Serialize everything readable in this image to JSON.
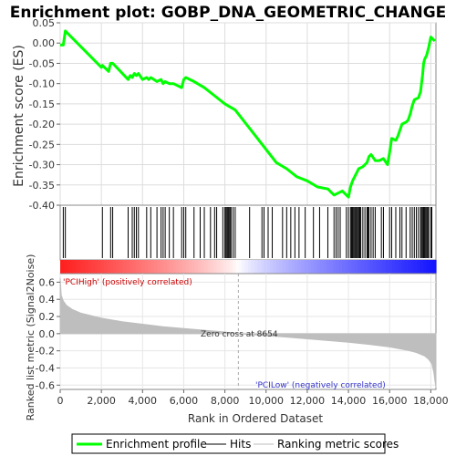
{
  "chart_data": {
    "type": "line",
    "title": "Enrichment plot: GOBP_DNA_GEOMETRIC_CHANGE",
    "enrichment_panel": {
      "ylabel": "Enrichment score (ES)",
      "ylim": [
        -0.4,
        0.05
      ],
      "yticks": [
        0.05,
        0.0,
        -0.05,
        -0.1,
        -0.15,
        -0.2,
        -0.25,
        -0.3,
        -0.35,
        -0.4
      ],
      "ytick_labels": [
        "0.05",
        "0.00",
        "-0.05",
        "-0.10",
        "-0.15",
        "-0.20",
        "-0.25",
        "-0.30",
        "-0.35",
        "-0.40"
      ],
      "grid": true,
      "series": [
        {
          "name": "Enrichment profile",
          "color": "#00ff00",
          "x": [
            0,
            150,
            250,
            2000,
            2050,
            2350,
            2450,
            2550,
            3300,
            3400,
            3500,
            3600,
            3700,
            3800,
            4000,
            4200,
            4300,
            4400,
            4700,
            4900,
            5000,
            5100,
            5300,
            5500,
            5900,
            6000,
            6100,
            6500,
            7000,
            7500,
            8000,
            8500,
            9500,
            10500,
            11000,
            11500,
            12000,
            12500,
            13000,
            13300,
            13500,
            13700,
            14000,
            14100,
            14200,
            14300,
            14400,
            14500,
            14700,
            14800,
            14900,
            15000,
            15100,
            15300,
            15500,
            15700,
            15900,
            16000,
            16100,
            16300,
            16400,
            16600,
            16800,
            16900,
            17000,
            17100,
            17200,
            17400,
            17500,
            17550,
            17600,
            17650,
            17700,
            17800,
            17900,
            18000,
            18100,
            18200
          ],
          "y": [
            -0.005,
            -0.005,
            0.03,
            -0.06,
            -0.055,
            -0.07,
            -0.05,
            -0.05,
            -0.09,
            -0.08,
            -0.085,
            -0.075,
            -0.08,
            -0.075,
            -0.09,
            -0.085,
            -0.09,
            -0.085,
            -0.095,
            -0.09,
            -0.1,
            -0.095,
            -0.1,
            -0.1,
            -0.11,
            -0.09,
            -0.085,
            -0.095,
            -0.11,
            -0.13,
            -0.15,
            -0.165,
            -0.23,
            -0.295,
            -0.31,
            -0.33,
            -0.34,
            -0.355,
            -0.36,
            -0.375,
            -0.37,
            -0.365,
            -0.38,
            -0.355,
            -0.34,
            -0.33,
            -0.32,
            -0.31,
            -0.305,
            -0.3,
            -0.295,
            -0.28,
            -0.275,
            -0.29,
            -0.29,
            -0.285,
            -0.3,
            -0.27,
            -0.235,
            -0.24,
            -0.23,
            -0.2,
            -0.195,
            -0.19,
            -0.175,
            -0.155,
            -0.14,
            -0.135,
            -0.12,
            -0.1,
            -0.08,
            -0.05,
            -0.04,
            -0.03,
            -0.01,
            0.015,
            0.01,
            0.005
          ]
        }
      ]
    },
    "hits_panel": {
      "hit_positions": [
        150,
        250,
        2050,
        2450,
        2550,
        3300,
        3500,
        3600,
        3700,
        3800,
        4200,
        4400,
        4700,
        4900,
        5000,
        5100,
        5300,
        5500,
        5900,
        6000,
        6100,
        6500,
        6800,
        7000,
        7300,
        7500,
        7600,
        7900,
        8000,
        8050,
        8100,
        8150,
        8200,
        8250,
        8300,
        8400,
        8500,
        9200,
        9800,
        9900,
        10100,
        10300,
        10800,
        11000,
        11200,
        11400,
        11600,
        11900,
        12300,
        12600,
        13000,
        13300,
        13400,
        13500,
        13600,
        13900,
        14000,
        14100,
        14150,
        14200,
        14250,
        14300,
        14350,
        14400,
        14450,
        14500,
        14550,
        14600,
        14700,
        14800,
        14900,
        14950,
        15000,
        15100,
        15200,
        15300,
        15600,
        15700,
        16000,
        16100,
        16300,
        16500,
        16600,
        16800,
        17000,
        17100,
        17200,
        17300,
        17400,
        17500,
        17550,
        17600,
        17650,
        17700,
        17750,
        17800,
        17850,
        17900,
        18000,
        18050
      ]
    },
    "ranked_metric_panel": {
      "ylabel": "Ranked list metric (Signal2Noise)",
      "ylim": [
        -0.65,
        0.7
      ],
      "yticks": [
        0.6,
        0.4,
        0.2,
        0.0,
        -0.2,
        -0.4,
        -0.6
      ],
      "ytick_labels": [
        "0.6",
        "0.4",
        "0.2",
        "0.0",
        "-0.2",
        "-0.4",
        "-0.6"
      ],
      "x": [
        0,
        50,
        150,
        300,
        600,
        1000,
        2000,
        3000,
        4000,
        5000,
        6000,
        7000,
        8000,
        8654,
        9500,
        11000,
        12000,
        13000,
        14000,
        15000,
        16000,
        16800,
        17300,
        17700,
        17900,
        18050,
        18150,
        18200,
        18250
      ],
      "values": [
        0.65,
        0.45,
        0.38,
        0.33,
        0.28,
        0.24,
        0.18,
        0.14,
        0.11,
        0.08,
        0.06,
        0.04,
        0.02,
        0.0,
        -0.015,
        -0.04,
        -0.06,
        -0.08,
        -0.1,
        -0.125,
        -0.155,
        -0.19,
        -0.22,
        -0.26,
        -0.3,
        -0.35,
        -0.45,
        -0.55,
        -0.63
      ],
      "zero_cross_rank": 8654,
      "zero_cross_label": "Zero cross at 8654",
      "positive_label": "'PCIHigh' (positively correlated)",
      "negative_label": "'PCILow' (negatively correlated)",
      "fill_color": "#bebebe"
    },
    "xlabel": "Rank in Ordered Dataset",
    "xlim": [
      0,
      18250
    ],
    "xticks": [
      0,
      2000,
      4000,
      6000,
      8000,
      10000,
      12000,
      14000,
      16000,
      18000
    ],
    "xtick_labels": [
      "0",
      "2,000",
      "4,000",
      "6,000",
      "8,000",
      "10,000",
      "12,000",
      "14,000",
      "16,000",
      "18,000"
    ],
    "legend": {
      "placement": "bottom",
      "entries": [
        {
          "label": "Enrichment profile",
          "color": "#00ff00"
        },
        {
          "label": "Hits",
          "color": "#000000"
        },
        {
          "label": "Ranking metric scores",
          "color": "#bebebe"
        }
      ]
    },
    "colors": {
      "positive": "#ff0000",
      "negative": "#0000ff",
      "positive_text": "#cc0000",
      "negative_text": "#3333cc"
    }
  }
}
